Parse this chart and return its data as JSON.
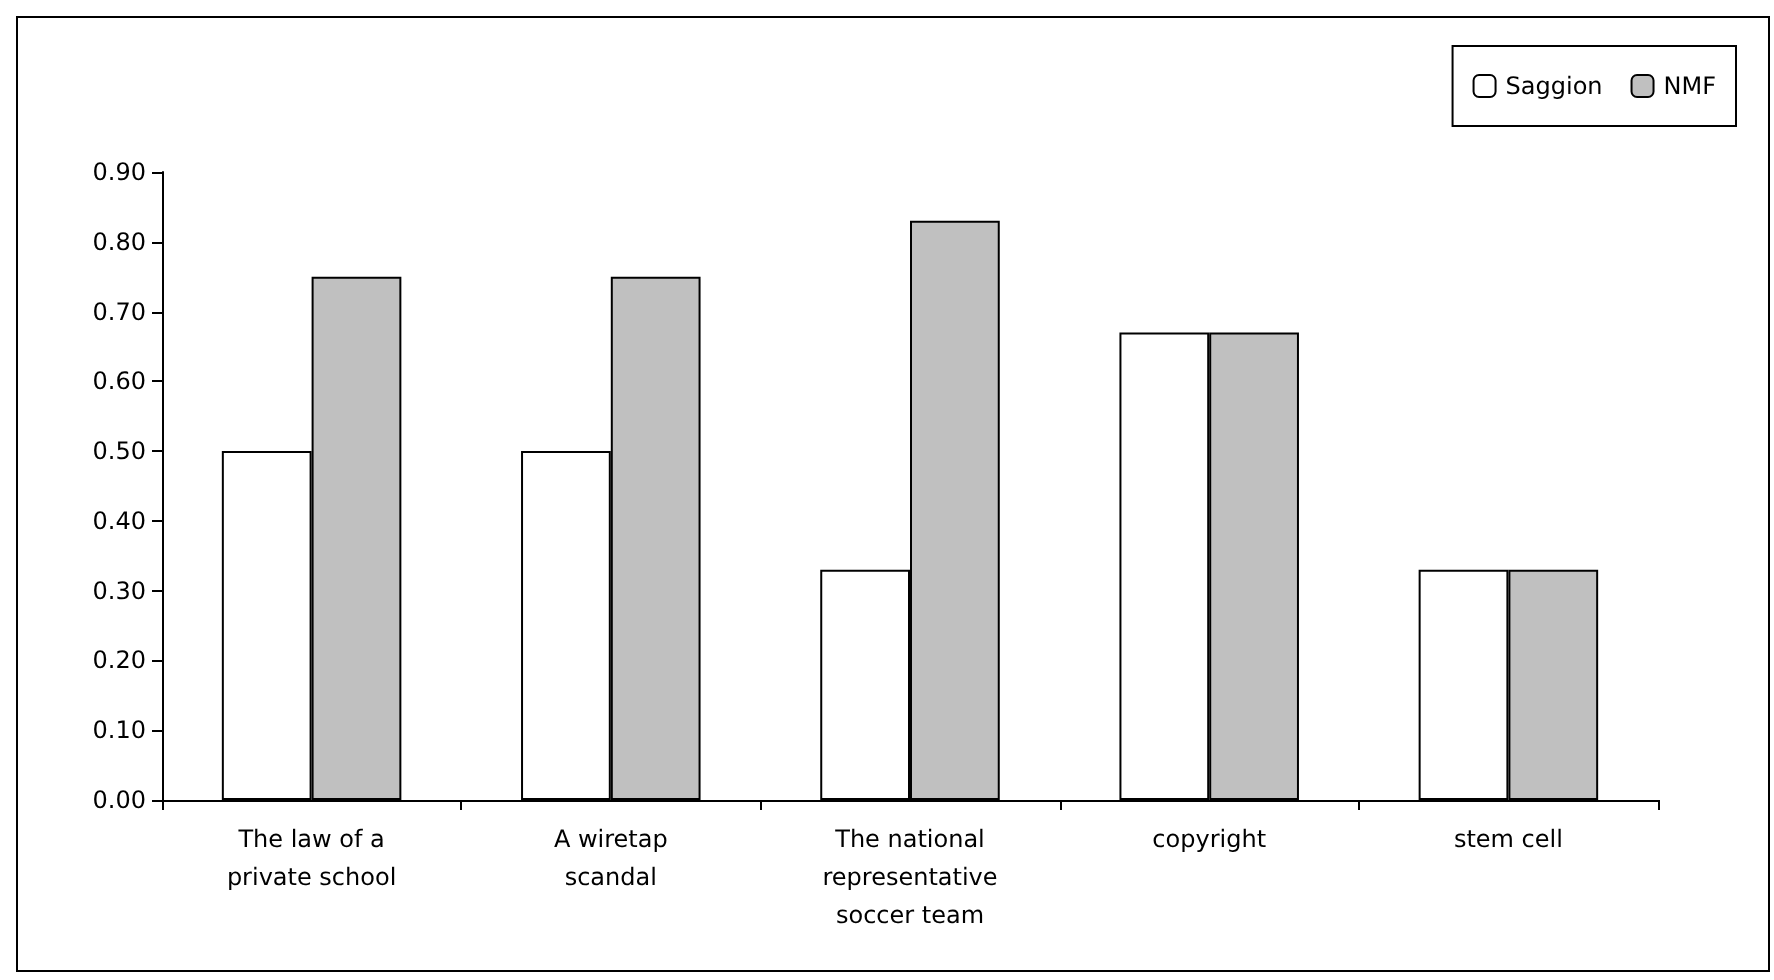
{
  "chart_data": {
    "type": "bar",
    "categories": [
      "The law of a\nprivate school",
      "A wiretap\nscandal",
      "The national\nrepresentative\nsoccer team",
      "copyright",
      "stem cell"
    ],
    "series": [
      {
        "name": "Saggion",
        "color": "#ffffff",
        "values": [
          0.5,
          0.5,
          0.33,
          0.67,
          0.33
        ]
      },
      {
        "name": "NMF",
        "color": "#c0c0c0",
        "values": [
          0.75,
          0.75,
          0.83,
          0.67,
          0.33
        ]
      }
    ],
    "ylim": [
      0,
      0.9
    ],
    "yticks": [
      {
        "value": 0,
        "label": "0.00"
      },
      {
        "value": 0.1,
        "label": "0.10"
      },
      {
        "value": 0.2,
        "label": "0.20"
      },
      {
        "value": 0.3,
        "label": "0.30"
      },
      {
        "value": 0.4,
        "label": "0.40"
      },
      {
        "value": 0.5,
        "label": "0.50"
      },
      {
        "value": 0.6,
        "label": "0.60"
      },
      {
        "value": 0.7,
        "label": "0.70"
      },
      {
        "value": 0.8,
        "label": "0.80"
      },
      {
        "value": 0.9,
        "label": "0.90"
      }
    ],
    "grid": false,
    "legend": "top right"
  }
}
